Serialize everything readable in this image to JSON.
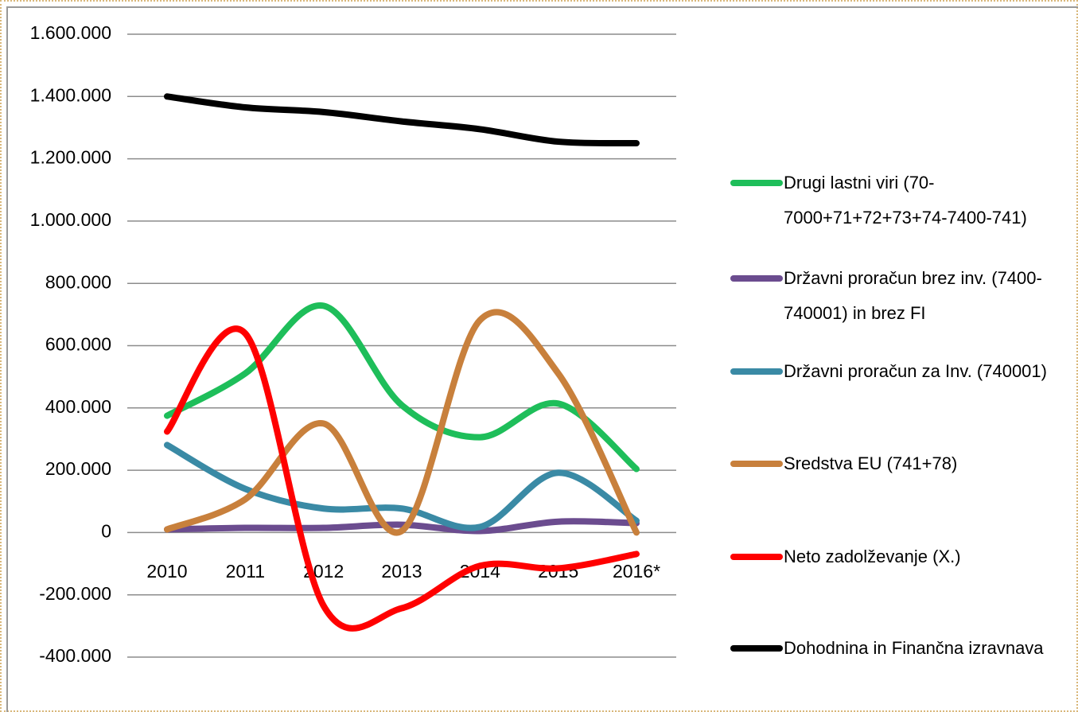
{
  "chart_data": {
    "type": "line",
    "categories": [
      "2010",
      "2011",
      "2012",
      "2013",
      "2014",
      "2015",
      "2016*"
    ],
    "series": [
      {
        "name": "Drugi lastni viri (70-7000+71+72+73+74-7400-741)",
        "color": "#1ebe5a",
        "values": [
          375000,
          511000,
          728000,
          409000,
          306000,
          414000,
          204000
        ]
      },
      {
        "name": "Državni proračun brez inv. (7400-740001) in brez  FI",
        "color": "#6b4c8f",
        "values": [
          10000,
          15000,
          15000,
          25000,
          5000,
          35000,
          30000
        ]
      },
      {
        "name": "Državni proračun za Inv. (740001)",
        "color": "#3a8aa5",
        "values": [
          281000,
          140000,
          77000,
          77000,
          18000,
          192000,
          38000
        ]
      },
      {
        "name": "Sredstva EU (741+78)",
        "color": "#c8803c",
        "values": [
          10000,
          107000,
          350000,
          5000,
          682000,
          511000,
          0
        ]
      },
      {
        "name": "Neto zadolževanje (X.)",
        "color": "#ff0000",
        "values": [
          324000,
          639000,
          -235000,
          -243000,
          -107000,
          -115000,
          -69000
        ]
      },
      {
        "name": "Dohodnina in Finančna izravnava",
        "color": "#000000",
        "values": [
          1400000,
          1365000,
          1350000,
          1320000,
          1295000,
          1255000,
          1250000
        ]
      }
    ],
    "ylim": [
      -400000,
      1600000
    ],
    "yticks": [
      {
        "value": -400000,
        "label": "-400.000"
      },
      {
        "value": -200000,
        "label": "-200.000"
      },
      0,
      {
        "value": 200000,
        "label": "200.000"
      },
      {
        "value": 400000,
        "label": "400.000"
      },
      {
        "value": 600000,
        "label": "600.000"
      },
      {
        "value": 800000,
        "label": "800.000"
      },
      {
        "value": 1000000,
        "label": "1.000.000"
      },
      {
        "value": 1200000,
        "label": "1.200.000"
      },
      {
        "value": 1400000,
        "label": "1.400.000"
      },
      {
        "value": 1600000,
        "label": "1.600.000"
      }
    ],
    "grid": true,
    "smooth": true,
    "legend": "right"
  }
}
